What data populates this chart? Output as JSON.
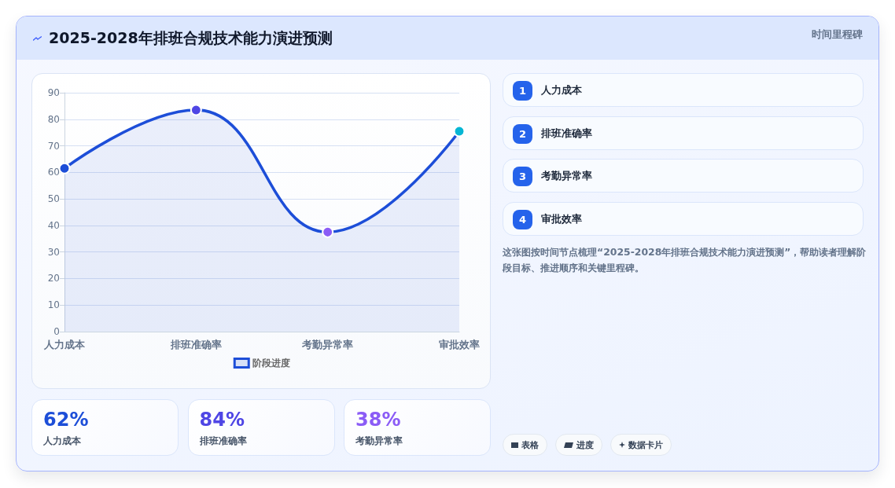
{
  "chart_data": [
    {
      "type": "area",
      "title": "2025-2028年排班合规技术能力演进预测",
      "categories": [
        "人力成本",
        "排班准确率",
        "考勤异常率",
        "审批效率"
      ],
      "series": [
        {
          "name": "阶段进度",
          "color": "#1d4ed8",
          "colors": [
            "#1d4ed8",
            "#4f46e5",
            "#8b5cf6",
            "#06b6d4"
          ],
          "values": [
            61.5,
            83.5,
            37.5,
            75.5
          ]
        }
      ],
      "ylim": [
        0,
        90
      ],
      "yticks": [
        0,
        10,
        20,
        30,
        40,
        50,
        60,
        70,
        80,
        90
      ],
      "grid": "y",
      "legend": "bottom",
      "marker": "circle",
      "line_style": "solid"
    },
    {
      "type": "other",
      "categories": [
        "人力成本",
        "排班准确率",
        "考勤异常率"
      ],
      "value_labels": [
        "62%",
        "84%",
        "38%"
      ]
    },
    {
      "type": "other",
      "title": "时间里程碑",
      "categories": [
        "人力成本",
        "排班准确率",
        "考勤异常率",
        "审批效率"
      ],
      "values": [
        1,
        2,
        3,
        4
      ],
      "data_labels": true,
      "color": "#2563eb",
      "annotations": [
        "这张图按时间节点梳理“2025-2028年排班合规技术能力演进预测”，帮助读者理解阶段目标、推进顺序和关键里程碑。",
        "表格",
        "进度",
        "数据卡片"
      ]
    }
  ]
}
